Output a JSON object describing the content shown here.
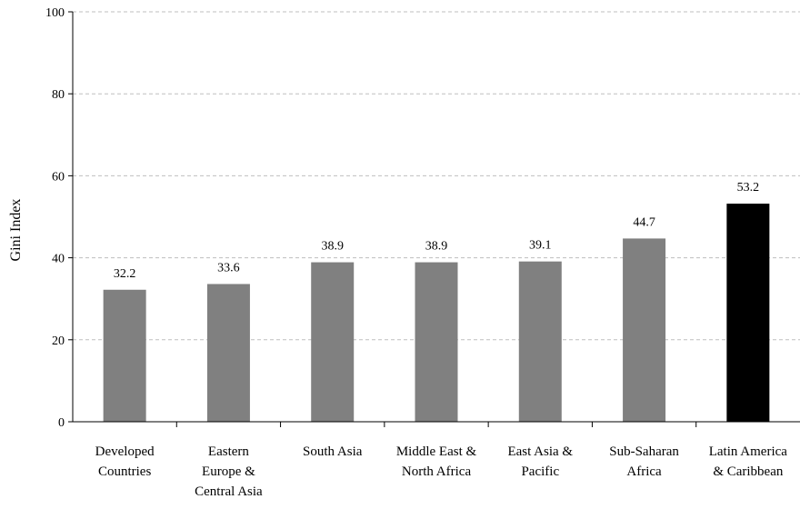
{
  "chart_data": {
    "type": "bar",
    "categories": [
      [
        "Developed",
        "Countries"
      ],
      [
        "Eastern",
        "Europe &",
        "Central Asia"
      ],
      [
        "South Asia"
      ],
      [
        "Middle East &",
        "North Africa"
      ],
      [
        "East Asia &",
        "Pacific"
      ],
      [
        "Sub-Saharan",
        "Africa"
      ],
      [
        "Latin America",
        "& Caribbean"
      ]
    ],
    "values": [
      32.2,
      33.6,
      38.9,
      38.9,
      39.1,
      44.7,
      53.2
    ],
    "value_labels": [
      "32.2",
      "33.6",
      "38.9",
      "38.9",
      "39.1",
      "44.7",
      "53.2"
    ],
    "ylabel": "Gini Index",
    "ylim": [
      0,
      100
    ],
    "yticks": [
      0,
      20,
      40,
      60,
      80,
      100
    ],
    "grid": true,
    "grid_style": "dashed",
    "colors": {
      "default_bar": "#808080",
      "highlight_bar": "#000000",
      "grid": "#bfbfbf",
      "axis": "#000000"
    },
    "highlight_index": 6
  }
}
